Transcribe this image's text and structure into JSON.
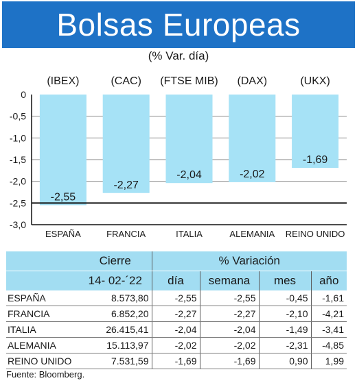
{
  "title": "Bolsas Europeas",
  "subtitle": "(% Var. día)",
  "chart_data": {
    "type": "bar",
    "indices": [
      "(IBEX)",
      "(CAC)",
      "(FTSE MIB)",
      "(DAX)",
      "(UKX)"
    ],
    "categories": [
      "ESPAÑA",
      "FRANCIA",
      "ITALIA",
      "ALEMANIA",
      "REINO UNIDO"
    ],
    "values": [
      -2.55,
      -2.27,
      -2.04,
      -2.02,
      -1.69
    ],
    "value_labels": [
      "-2,55",
      "-2,27",
      "-2,04",
      "-2,02",
      "-1,69"
    ],
    "ylim": [
      -3.0,
      0
    ],
    "yticks": [
      0,
      -0.5,
      -1.0,
      -1.5,
      -2.0,
      -2.5,
      -3.0
    ],
    "ytick_labels": [
      "0",
      "-0,5",
      "-1,0",
      "-1,5",
      "-2,0",
      "-2,5",
      "-3,0"
    ],
    "grid_values": [
      -0.5,
      -1.0,
      -1.5,
      -2.0
    ],
    "reference_line": -2.5,
    "bar_color": "#a6e2f6",
    "grid_color": "#8a8a8a"
  },
  "table": {
    "header_cierre": "Cierre",
    "header_variacion": "% Variación",
    "date": "14- 02-´22",
    "col_dia": "día",
    "col_semana": "semana",
    "col_mes": "mes",
    "col_anio": "año",
    "rows": [
      {
        "country": "ESPAÑA",
        "cierre": "8.573,80",
        "dia": "-2,55",
        "semana": "-2,55",
        "mes": "-0,45",
        "anio": "-1,61"
      },
      {
        "country": "FRANCIA",
        "cierre": "6.852,20",
        "dia": "-2,27",
        "semana": "-2,27",
        "mes": "-2,10",
        "anio": "-4,21"
      },
      {
        "country": "ITALIA",
        "cierre": "26.415,41",
        "dia": "-2,04",
        "semana": "-2,04",
        "mes": "-1,49",
        "anio": "-3,41"
      },
      {
        "country": "ALEMANIA",
        "cierre": "15.113,97",
        "dia": "-2,02",
        "semana": "-2,02",
        "mes": "-2,31",
        "anio": "-4,85"
      },
      {
        "country": "REINO UNIDO",
        "cierre": "7.531,59",
        "dia": "-1,69",
        "semana": "-1,69",
        "mes": "0,90",
        "anio": "1,99"
      }
    ],
    "header_bg": "#a2ddf2"
  },
  "source": "Fuente: Bloomberg."
}
